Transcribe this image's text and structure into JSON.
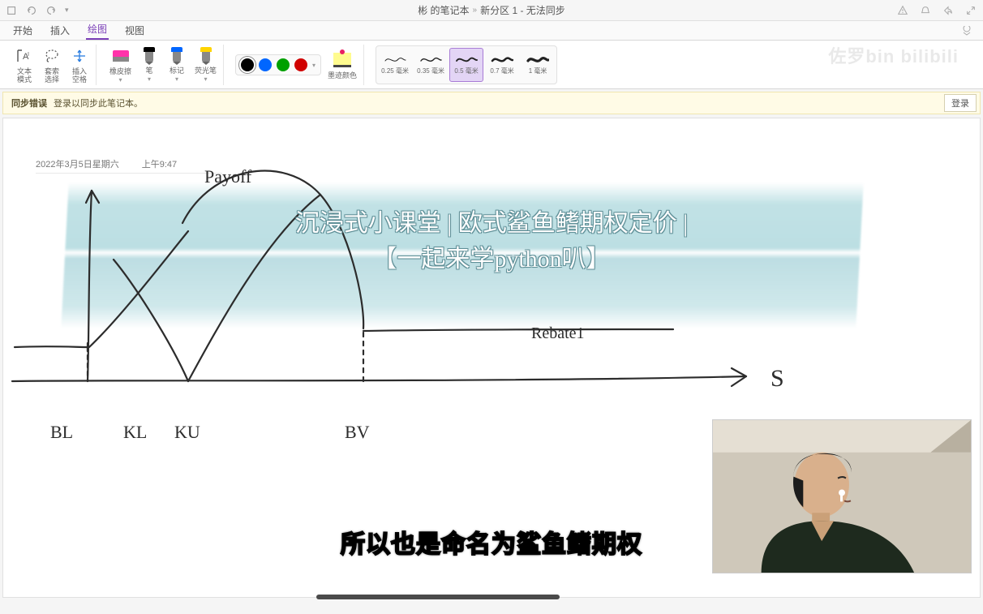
{
  "titlebar": {
    "breadcrumb_part1": "彬 的笔记本",
    "breadcrumb_sep": "»",
    "breadcrumb_part2": "新分区 1 - 无法同步"
  },
  "tabs": {
    "items": [
      "开始",
      "插入",
      "绘图",
      "视图"
    ],
    "active_index": 2
  },
  "ribbon": {
    "text_mode": "文本\n模式",
    "lasso": "套索\n选择",
    "insert_space": "插入\n空格",
    "eraser": "橡皮擦",
    "pen": "笔",
    "marker": "标记",
    "highlighter": "荧光笔",
    "ink_color": "墨迹颜色",
    "pen_colors": {
      "black": "#000000",
      "purple": "#7b3fb8",
      "blue": "#0066ff",
      "yellow": "#ffd400"
    },
    "palette_colors": [
      "#000000",
      "#0066ff",
      "#00a000",
      "#d00000"
    ],
    "palette_selected": 0,
    "thickness": {
      "options": [
        "0.25 毫米",
        "0.35 毫米",
        "0.5 毫米",
        "0.7 毫米",
        "1 毫米"
      ],
      "stroke_widths": [
        1,
        1.4,
        1.9,
        2.5,
        3.2
      ],
      "selected_index": 2
    }
  },
  "warn": {
    "bold": "同步错误",
    "text": "登录以同步此笔记本。",
    "login": "登录"
  },
  "note": {
    "date": "2022年3月5日星期六",
    "time": "上午9:47"
  },
  "sketch": {
    "axis_labels": {
      "y": "Payoff",
      "bl": "BL",
      "kl": "KL",
      "ku": "KU",
      "bv": "BV",
      "rebate": "Rebate1",
      "s": "S"
    },
    "stroke_color": "#2c2c2c",
    "stroke_width": 2.2
  },
  "overlay": {
    "line1": "沉浸式小课堂 | 欧式鲨鱼鳍期权定价 |",
    "line2": "【一起来学python叭】",
    "band_color": "#9dcdd4"
  },
  "subtitle": "所以也是命名为鲨鱼鳍期权",
  "watermark": "佐罗bin  bilibili"
}
